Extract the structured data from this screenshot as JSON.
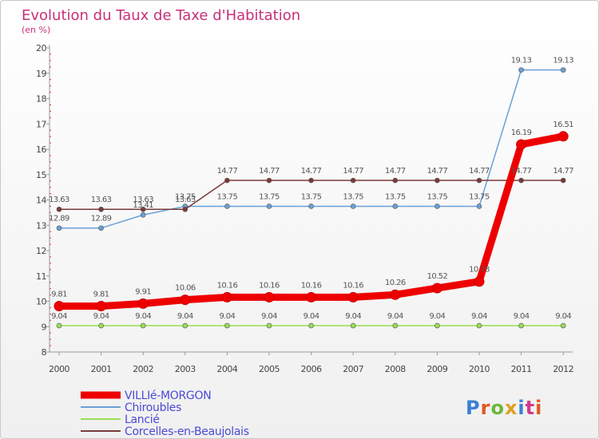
{
  "chart_data": {
    "type": "line",
    "title": "Evolution du Taux de Taxe d'Habitation",
    "subtitle": "(en %)",
    "x": [
      "2000",
      "2001",
      "2002",
      "2003",
      "2004",
      "2005",
      "2006",
      "2007",
      "2008",
      "2009",
      "2010",
      "2011",
      "2012"
    ],
    "ylim": [
      8,
      20
    ],
    "yticks": [
      "8",
      "9",
      "10",
      "11",
      "12",
      "13",
      "14",
      "15",
      "16",
      "17",
      "18",
      "19",
      "20"
    ],
    "grid": false,
    "legend_position": "bottom-left",
    "series": [
      {
        "name": "VILLIé-MORGON",
        "color": "#ee0000",
        "width": 9,
        "values": [
          9.81,
          9.81,
          9.91,
          10.06,
          10.16,
          10.16,
          10.16,
          10.16,
          10.26,
          10.52,
          10.78,
          16.19,
          16.51
        ],
        "labels": [
          "9.81",
          "9.81",
          "9.91",
          "10.06",
          "10.16",
          "10.16",
          "10.16",
          "10.16",
          "10.26",
          "10.52",
          "10.78",
          "16.19",
          "16.51"
        ]
      },
      {
        "name": "Chiroubles",
        "color": "#6aa0d6",
        "width": 1.5,
        "values": [
          12.89,
          12.89,
          13.41,
          13.75,
          13.75,
          13.75,
          13.75,
          13.75,
          13.75,
          13.75,
          13.75,
          19.13,
          19.13
        ],
        "labels": [
          "12.89",
          "12.89",
          "13.41",
          "13.75",
          "13.75",
          "13.75",
          "13.75",
          "13.75",
          "13.75",
          "13.75",
          "13.75",
          "19.13",
          "19.13"
        ]
      },
      {
        "name": "Lancié",
        "color": "#99dd55",
        "width": 1.5,
        "values": [
          9.04,
          9.04,
          9.04,
          9.04,
          9.04,
          9.04,
          9.04,
          9.04,
          9.04,
          9.04,
          9.04,
          9.04,
          9.04
        ],
        "labels": [
          "9.04",
          "9.04",
          "9.04",
          "9.04",
          "9.04",
          "9.04",
          "9.04",
          "9.04",
          "9.04",
          "9.04",
          "9.04",
          "9.04",
          "9.04"
        ]
      },
      {
        "name": "Corcelles-en-Beaujolais",
        "color": "#7a3a3a",
        "width": 1.5,
        "values": [
          13.63,
          13.63,
          13.63,
          13.63,
          14.77,
          14.77,
          14.77,
          14.77,
          14.77,
          14.77,
          14.77,
          14.77,
          14.77
        ],
        "labels": [
          "13.63",
          "13.63",
          "13.63",
          "13.63",
          "14.77",
          "14.77",
          "14.77",
          "14.77",
          "14.77",
          "14.77",
          "14.77",
          "14.77",
          "14.77"
        ]
      }
    ]
  },
  "logo": {
    "text": "Proxiti"
  }
}
